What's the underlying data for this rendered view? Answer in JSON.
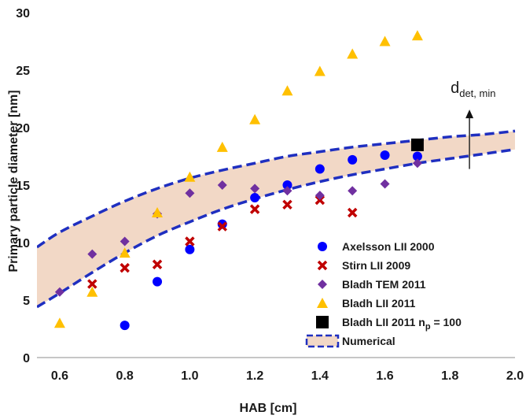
{
  "chart_data": {
    "type": "scatter",
    "xlabel": "HAB [cm]",
    "ylabel": "Primary particle diameter [nm]",
    "xlim": [
      0.53,
      2.0
    ],
    "ylim": [
      0,
      30
    ],
    "xticks": [
      "0.6",
      "0.8",
      "1.0",
      "1.2",
      "1.4",
      "1.6",
      "1.8",
      "2.0"
    ],
    "yticks": [
      "0",
      "5",
      "10",
      "15",
      "20",
      "25",
      "30"
    ],
    "grid": false,
    "legend_position": "bottom-right",
    "annotation": {
      "main": "d",
      "sub": "det, min",
      "x": 1.86,
      "y_from": 16.4,
      "y_to": 21.5
    },
    "series": [
      {
        "name": "Axelsson LII 2000",
        "marker": "circle",
        "color": "#0000ff",
        "x": [
          0.8,
          0.9,
          1.0,
          1.1,
          1.2,
          1.3,
          1.4,
          1.5,
          1.6,
          1.7
        ],
        "y": [
          2.8,
          6.6,
          9.4,
          11.6,
          13.9,
          15.0,
          16.4,
          17.2,
          17.6,
          17.5
        ]
      },
      {
        "name": "Stirn LII 2009",
        "marker": "x",
        "color": "#c00000",
        "x": [
          0.7,
          0.8,
          0.9,
          1.0,
          1.1,
          1.2,
          1.3,
          1.4,
          1.5
        ],
        "y": [
          6.4,
          7.8,
          8.1,
          10.1,
          11.4,
          12.9,
          13.3,
          13.7,
          12.6
        ]
      },
      {
        "name": "Bladh TEM 2011",
        "marker": "diamond",
        "color": "#7030a0",
        "x": [
          0.6,
          0.7,
          0.8,
          0.9,
          1.0,
          1.1,
          1.2,
          1.3,
          1.4,
          1.5,
          1.6,
          1.7
        ],
        "y": [
          5.7,
          9.0,
          10.1,
          12.5,
          14.3,
          15.0,
          14.7,
          14.5,
          14.1,
          14.5,
          15.1,
          16.9
        ]
      },
      {
        "name": "Bladh LII 2011",
        "marker": "triangle",
        "color": "#ffc000",
        "x": [
          0.6,
          0.7,
          0.8,
          0.9,
          1.0,
          1.1,
          1.2,
          1.3,
          1.4,
          1.5,
          1.6,
          1.7
        ],
        "y": [
          3.0,
          5.7,
          9.1,
          12.6,
          15.7,
          18.3,
          20.7,
          23.2,
          24.9,
          26.4,
          27.5,
          28.0
        ]
      },
      {
        "name": "Bladh LII 2011 n",
        "name_sub": "p",
        "name_suffix": " = 100",
        "marker": "square",
        "color": "#000000",
        "x": [
          1.7
        ],
        "y": [
          18.5
        ]
      }
    ],
    "band": {
      "name": "Numerical",
      "line_color": "#1f2fc0",
      "fill_color": "#f2d8c6",
      "x": [
        0.53,
        0.6,
        0.7,
        0.8,
        0.9,
        1.0,
        1.1,
        1.2,
        1.3,
        1.4,
        1.5,
        1.6,
        1.7,
        1.8,
        1.9,
        2.0
      ],
      "upper": [
        9.6,
        10.9,
        12.3,
        13.6,
        14.7,
        15.6,
        16.3,
        16.9,
        17.5,
        17.9,
        18.3,
        18.6,
        18.9,
        19.2,
        19.4,
        19.7
      ],
      "lower": [
        4.4,
        5.6,
        7.4,
        9.1,
        10.6,
        11.8,
        12.9,
        13.8,
        14.6,
        15.3,
        15.9,
        16.4,
        16.9,
        17.3,
        17.7,
        18.1
      ]
    }
  }
}
